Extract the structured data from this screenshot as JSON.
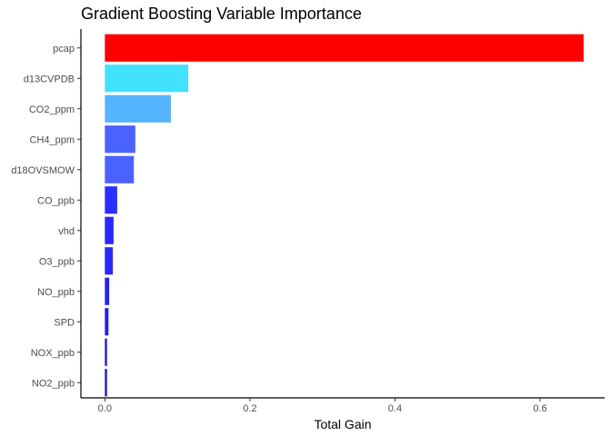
{
  "chart_data": {
    "type": "bar",
    "orientation": "horizontal",
    "title": "Gradient Boosting Variable Importance",
    "xlabel": "Total Gain",
    "ylabel": "",
    "xlim": [
      -0.033,
      0.689
    ],
    "xticks": [
      0.0,
      0.2,
      0.4,
      0.6
    ],
    "xtick_labels": [
      "0.0",
      "0.2",
      "0.4",
      "0.6"
    ],
    "grid": false,
    "legend": "none",
    "categories": [
      "pcap",
      "d13CVPDB",
      "CO2_ppm",
      "CH4_ppm",
      "d18OVSMOW",
      "CO_ppb",
      "vhd",
      "O3_ppb",
      "NO_ppb",
      "SPD",
      "NOX_ppb",
      "NO2_ppb"
    ],
    "values": [
      0.66,
      0.115,
      0.091,
      0.042,
      0.04,
      0.017,
      0.012,
      0.011,
      0.006,
      0.005,
      0.003,
      0.003
    ],
    "bar_colors": [
      "#FF0000",
      "#42E1FF",
      "#55B4FF",
      "#4A63FF",
      "#4A63FF",
      "#2A30FF",
      "#2828FF",
      "#2828FF",
      "#2424EE",
      "#2222E6",
      "#1D1DD0",
      "#1A1AC5"
    ]
  }
}
